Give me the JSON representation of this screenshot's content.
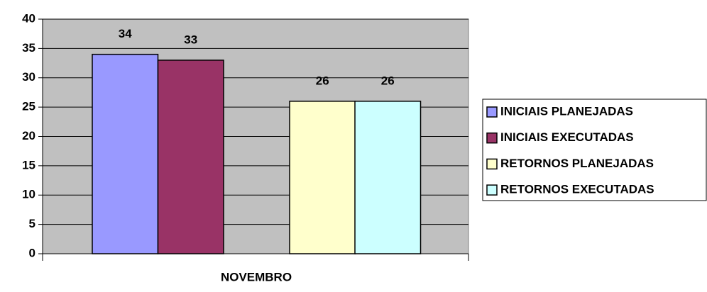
{
  "chart_data": {
    "type": "bar",
    "categories": [
      "NOVEMBRO"
    ],
    "series": [
      {
        "name": "INICIAIS PLANEJADAS",
        "color": "#9999ff",
        "values": [
          34
        ]
      },
      {
        "name": "INICIAIS EXECUTADAS",
        "color": "#993366",
        "values": [
          33
        ]
      },
      {
        "name": "RETORNOS PLANEJADAS",
        "color": "#ffffcc",
        "values": [
          26
        ]
      },
      {
        "name": "RETORNOS EXECUTADAS",
        "color": "#ccffff",
        "values": [
          26
        ]
      }
    ],
    "ylim": [
      0,
      40
    ],
    "yticks": [
      0,
      5,
      10,
      15,
      20,
      25,
      30,
      35,
      40
    ],
    "grid": true,
    "legend": "right"
  }
}
